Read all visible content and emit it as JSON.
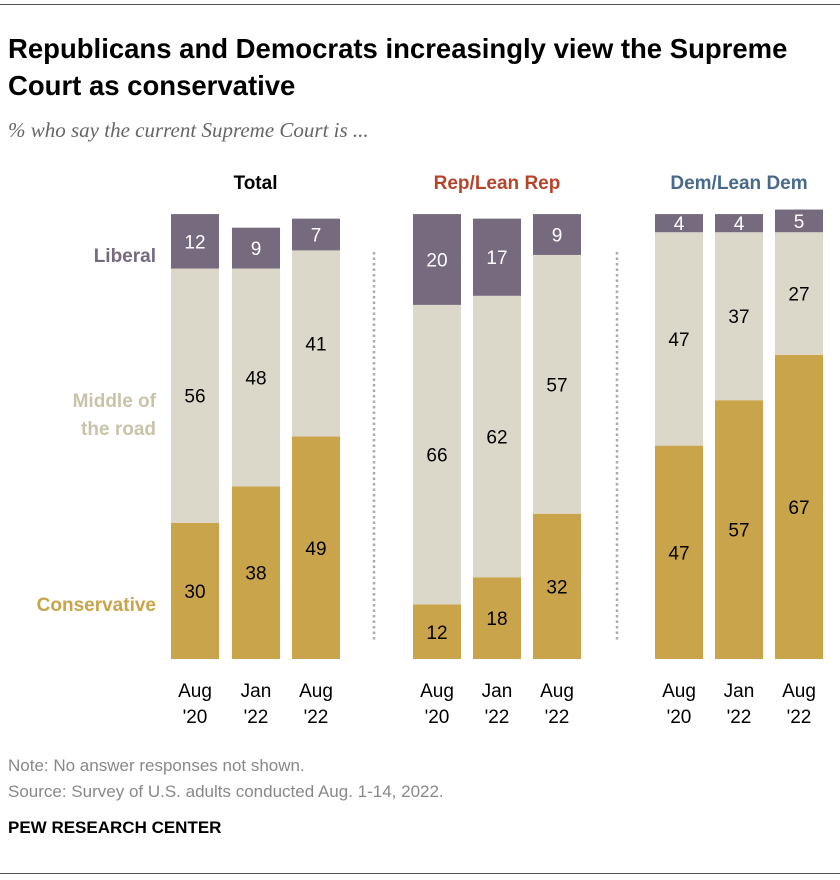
{
  "title": "Republicans and Democrats increasingly view the Supreme Court as conservative",
  "subtitle": "% who say the current Supreme Court is ...",
  "note": "Note: No answer responses not shown.",
  "source": "Source: Survey of U.S. adults conducted Aug. 1-14, 2022.",
  "brand": "PEW RESEARCH CENTER",
  "chart_data": {
    "type": "bar",
    "stacked": true,
    "categories": [
      [
        "Aug",
        "'20"
      ],
      [
        "Jan",
        "'22"
      ],
      [
        "Aug",
        "'22"
      ]
    ],
    "series_labels": [
      "Conservative",
      "Middle of the road",
      "Liberal"
    ],
    "series_label_lines": [
      [
        "Conservative"
      ],
      [
        "Middle of",
        "the road"
      ],
      [
        "Liberal"
      ]
    ],
    "colors": {
      "Conservative": "#c9a44a",
      "Middle of the road": "#dbd8ca",
      "Liberal": "#756a7e"
    },
    "label_colors": {
      "Conservative": "#c9a44a",
      "Middle of the road": "#c9c3a9",
      "Liberal": "#756a7e"
    },
    "panels": [
      {
        "title": "Total",
        "title_color": "#000000",
        "values": {
          "Conservative": [
            30,
            38,
            49
          ],
          "Middle of the road": [
            56,
            48,
            41
          ],
          "Liberal": [
            12,
            9,
            7
          ]
        }
      },
      {
        "title": "Rep/Lean Rep",
        "title_color": "#b5442c",
        "values": {
          "Conservative": [
            12,
            18,
            32
          ],
          "Middle of the road": [
            66,
            62,
            57
          ],
          "Liberal": [
            20,
            17,
            9
          ]
        }
      },
      {
        "title": "Dem/Lean Dem",
        "title_color": "#46698d",
        "values": {
          "Conservative": [
            47,
            57,
            67
          ],
          "Middle of the road": [
            47,
            37,
            27
          ],
          "Liberal": [
            4,
            4,
            5
          ]
        }
      }
    ],
    "ylim": [
      0,
      100
    ]
  }
}
